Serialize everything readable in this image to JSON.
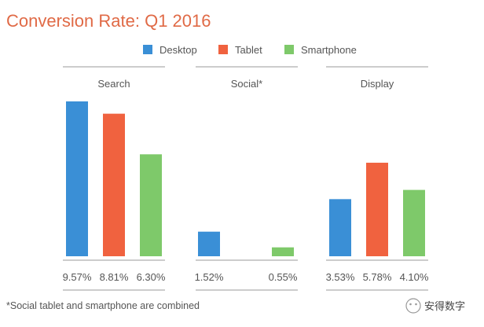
{
  "chart_data": {
    "type": "bar",
    "title": "Conversion Rate: Q1 2016",
    "series": [
      {
        "name": "Desktop",
        "color": "#3a8fd6"
      },
      {
        "name": "Tablet",
        "color": "#f0623f"
      },
      {
        "name": "Smartphone",
        "color": "#7ec96a"
      }
    ],
    "groups": [
      {
        "label": "Search",
        "bars": [
          {
            "series": "Desktop",
            "value": 9.57,
            "label": "9.57%"
          },
          {
            "series": "Tablet",
            "value": 8.81,
            "label": "8.81%"
          },
          {
            "series": "Smartphone",
            "value": 6.3,
            "label": "6.30%"
          }
        ]
      },
      {
        "label": "Social*",
        "bars": [
          {
            "series": "Desktop",
            "value": 1.52,
            "label": "1.52%"
          },
          {
            "series": "Smartphone",
            "value": 0.55,
            "label": "0.55%"
          }
        ]
      },
      {
        "label": "Display",
        "bars": [
          {
            "series": "Desktop",
            "value": 3.53,
            "label": "3.53%"
          },
          {
            "series": "Tablet",
            "value": 5.78,
            "label": "5.78%"
          },
          {
            "series": "Smartphone",
            "value": 4.1,
            "label": "4.10%"
          }
        ]
      }
    ],
    "footnote": "*Social tablet and smartphone are combined",
    "legend_position": "top",
    "grid": false
  },
  "watermark": {
    "text": "安得数字"
  },
  "colors": {
    "title": "#e06a46",
    "text": "#555555",
    "rule": "#9a9a9a"
  }
}
